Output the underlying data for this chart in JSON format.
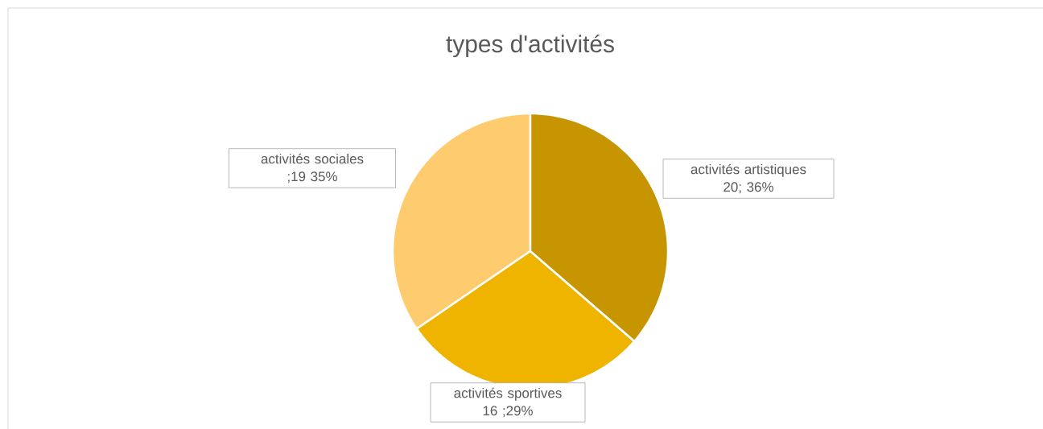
{
  "chart_data": {
    "type": "pie",
    "title": "types d'activités",
    "categories": [
      "activités artistiques",
      "activités sportives",
      "activités sociales"
    ],
    "values": [
      20,
      16,
      19
    ],
    "colors": [
      "#c69500",
      "#efb400",
      "#fecb6e"
    ],
    "value_labels": [
      "20; 36%",
      "16 ;29%",
      ";19 35%"
    ]
  }
}
